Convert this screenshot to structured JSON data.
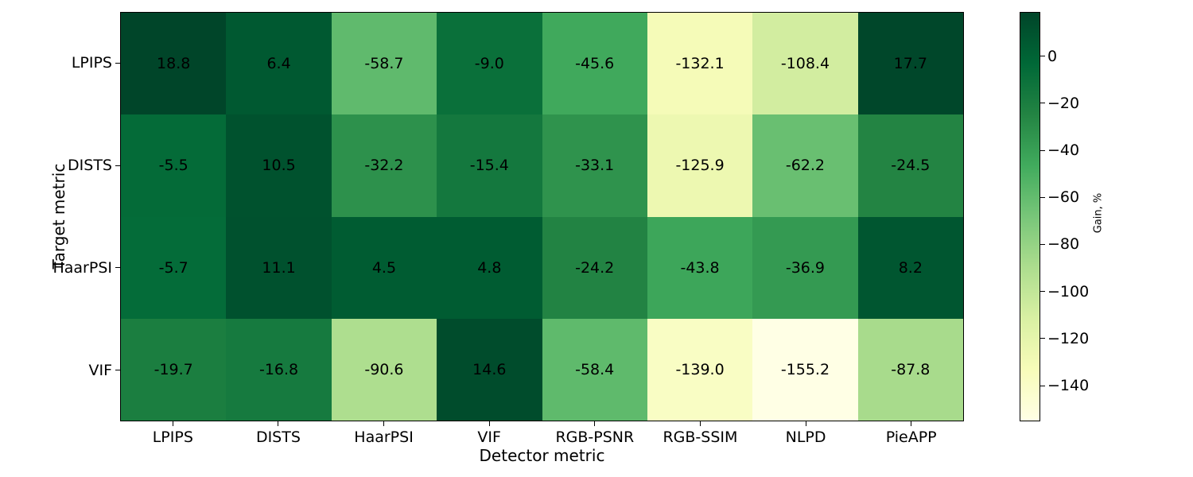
{
  "chart_data": {
    "type": "heatmap",
    "title": "",
    "xlabel": "Detector metric",
    "ylabel": "Target metric",
    "colorbar_label": "Gain, %",
    "columns": [
      "LPIPS",
      "DISTS",
      "HaarPSI",
      "VIF",
      "RGB-PSNR",
      "RGB-SSIM",
      "NLPD",
      "PieAPP"
    ],
    "rows": [
      "LPIPS",
      "DISTS",
      "HaarPSI",
      "VIF"
    ],
    "values": [
      [
        18.8,
        6.4,
        -58.7,
        -9.0,
        -45.6,
        -132.1,
        -108.4,
        17.7
      ],
      [
        -5.5,
        10.5,
        -32.2,
        -15.4,
        -33.1,
        -125.9,
        -62.2,
        -24.5
      ],
      [
        -5.7,
        11.1,
        4.5,
        4.8,
        -24.2,
        -43.8,
        -36.9,
        8.2
      ],
      [
        -19.7,
        -16.8,
        -90.6,
        14.6,
        -58.4,
        -139.0,
        -155.2,
        -87.8
      ]
    ],
    "value_decimals": 1,
    "vmin": -155.2,
    "vmax": 18.8,
    "colormap": "YlGn",
    "colormap_stops": [
      "#ffffe5",
      "#f7fcb9",
      "#d9f0a3",
      "#addd8e",
      "#78c679",
      "#41ab5d",
      "#238443",
      "#006837",
      "#004529"
    ],
    "colorbar_ticks": [
      0,
      -20,
      -40,
      -60,
      -80,
      -100,
      -120,
      -140
    ],
    "annotation_color": "#000000",
    "grid": false,
    "legend_position": "right-colorbar"
  }
}
